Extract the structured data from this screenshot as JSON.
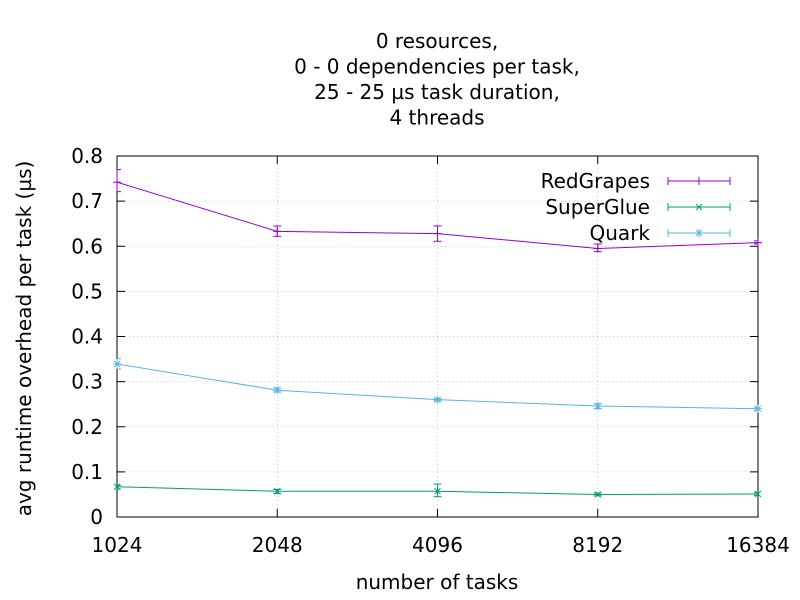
{
  "chart_data": {
    "type": "line",
    "title_lines": [
      "0 resources,",
      "0 - 0 dependencies per task,",
      "25 - 25 µs task duration,",
      "4 threads"
    ],
    "xlabel": "number of tasks",
    "ylabel": "avg runtime overhead per task (µs)",
    "x_scale": "log2",
    "categories": [
      "1024",
      "2048",
      "4096",
      "8192",
      "16384"
    ],
    "x": [
      1024,
      2048,
      4096,
      8192,
      16384
    ],
    "ylim": [
      0,
      0.8
    ],
    "yticks": [
      "0",
      "0.1",
      "0.2",
      "0.3",
      "0.4",
      "0.5",
      "0.6",
      "0.7",
      "0.8"
    ],
    "grid": true,
    "legend_position": "top-right",
    "series": [
      {
        "name": "RedGrapes",
        "color": "#9400d3",
        "marker": "plus",
        "values": [
          0.742,
          0.633,
          0.628,
          0.595,
          0.608
        ],
        "err_low": [
          0.721,
          0.622,
          0.611,
          0.588,
          0.605
        ],
        "err_high": [
          0.77,
          0.645,
          0.645,
          0.605,
          0.612
        ]
      },
      {
        "name": "SuperGlue",
        "color": "#009e73",
        "marker": "cross",
        "values": [
          0.067,
          0.057,
          0.057,
          0.05,
          0.051
        ],
        "err_low": [
          0.062,
          0.052,
          0.045,
          0.047,
          0.048
        ],
        "err_high": [
          0.07,
          0.061,
          0.073,
          0.053,
          0.054
        ]
      },
      {
        "name": "Quark",
        "color": "#56b4e9",
        "marker": "star",
        "values": [
          0.339,
          0.281,
          0.26,
          0.246,
          0.24
        ],
        "err_low": [
          0.328,
          0.277,
          0.257,
          0.24,
          0.236
        ],
        "err_high": [
          0.351,
          0.286,
          0.263,
          0.251,
          0.243
        ]
      }
    ]
  }
}
